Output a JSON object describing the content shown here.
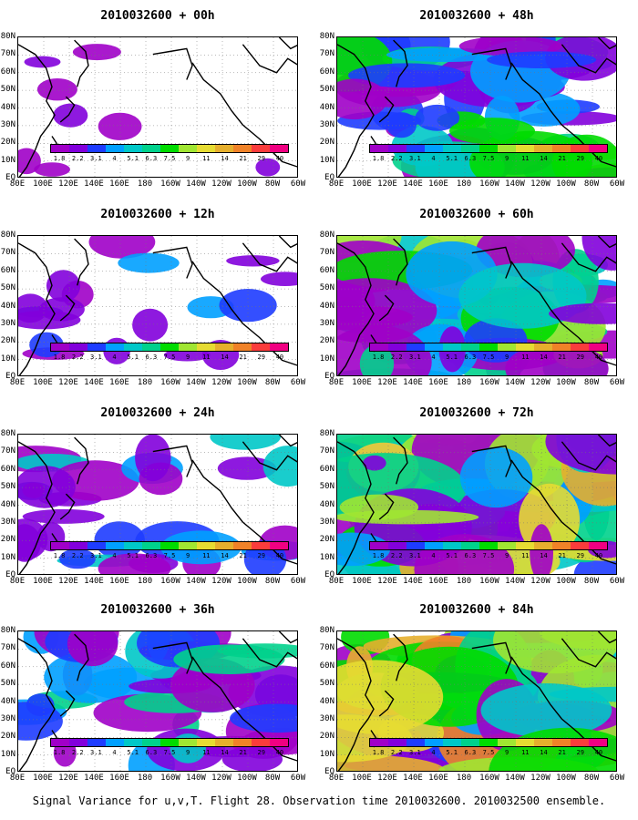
{
  "panels": [
    {
      "title": "2010032600 + 00h",
      "col": 0,
      "row": 0,
      "level": 0
    },
    {
      "title": "2010032600 + 12h",
      "col": 0,
      "row": 1,
      "level": 1
    },
    {
      "title": "2010032600 + 24h",
      "col": 0,
      "row": 2,
      "level": 2
    },
    {
      "title": "2010032600 + 36h",
      "col": 0,
      "row": 3,
      "level": 3
    },
    {
      "title": "2010032600 + 48h",
      "col": 1,
      "row": 0,
      "level": 4
    },
    {
      "title": "2010032600 + 60h",
      "col": 1,
      "row": 1,
      "level": 5
    },
    {
      "title": "2010032600 + 72h",
      "col": 1,
      "row": 2,
      "level": 6
    },
    {
      "title": "2010032600 + 84h",
      "col": 1,
      "row": 3,
      "level": 7
    }
  ],
  "lat_labels": [
    "80N",
    "70N",
    "60N",
    "50N",
    "40N",
    "30N",
    "20N",
    "10N",
    "EQ"
  ],
  "lon_labels": [
    "80E",
    "100E",
    "120E",
    "140E",
    "160E",
    "180",
    "160W",
    "140W",
    "120W",
    "100W",
    "80W",
    "60W"
  ],
  "colorbar": {
    "labels": [
      "1.8",
      "2.2",
      "3.1",
      "4",
      "5.1",
      "6.3",
      "7.5",
      "9",
      "11",
      "14",
      "21",
      "29",
      "40"
    ],
    "colors": [
      "#a000c8",
      "#8200dc",
      "#1e3cff",
      "#00a0ff",
      "#00c8c8",
      "#00d28c",
      "#00dc00",
      "#a0e632",
      "#e6dc32",
      "#e6af2d",
      "#f08228",
      "#fa3c3c",
      "#f00082"
    ]
  },
  "footer": "Signal Variance for u,v,T. Flight 28. Observation time 2010032600. 2010032500 ensemble."
}
